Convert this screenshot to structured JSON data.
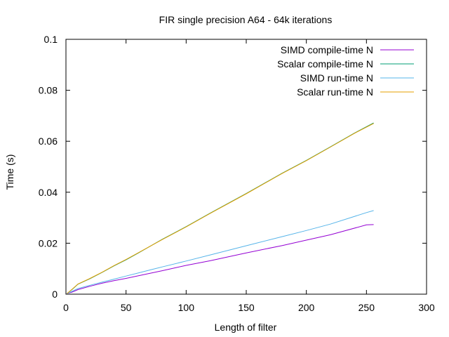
{
  "chart_data": {
    "type": "line",
    "title": "FIR single precision A64 - 64k iterations",
    "xlabel": "Length of filter",
    "ylabel": "Time (s)",
    "xlim": [
      0,
      300
    ],
    "ylim": [
      0,
      0.1
    ],
    "xticks": [
      0,
      50,
      100,
      150,
      200,
      250,
      300
    ],
    "yticks": [
      0,
      0.02,
      0.04,
      0.06,
      0.08,
      0.1
    ],
    "xtick_labels": [
      "0",
      "50",
      "100",
      "150",
      "200",
      "250",
      "300"
    ],
    "ytick_labels": [
      "0",
      "0.02",
      "0.04",
      "0.06",
      "0.08",
      "0.1"
    ],
    "grid": false,
    "legend_position": "top-right",
    "series": [
      {
        "name": "SIMD compile-time N",
        "color": "#9400d3",
        "x": [
          1,
          5,
          10,
          20,
          30,
          40,
          50,
          60,
          70,
          80,
          100,
          120,
          150,
          180,
          200,
          220,
          250,
          256
        ],
        "y": [
          0.0003,
          0.0008,
          0.0018,
          0.0031,
          0.0043,
          0.0053,
          0.0062,
          0.0072,
          0.0082,
          0.0092,
          0.0113,
          0.0131,
          0.0162,
          0.0191,
          0.0212,
          0.0233,
          0.0272,
          0.0273
        ]
      },
      {
        "name": "Scalar compile-time N",
        "color": "#009e73",
        "x": [
          1,
          5,
          10,
          20,
          30,
          40,
          50,
          60,
          80,
          100,
          120,
          150,
          180,
          200,
          220,
          240,
          256
        ],
        "y": [
          0.0003,
          0.0018,
          0.0039,
          0.0061,
          0.0085,
          0.0111,
          0.0135,
          0.0161,
          0.0215,
          0.0265,
          0.0318,
          0.0395,
          0.0475,
          0.0525,
          0.0578,
          0.0632,
          0.0672
        ]
      },
      {
        "name": "SIMD run-time N",
        "color": "#56b4e9",
        "x": [
          1,
          5,
          10,
          20,
          30,
          40,
          50,
          60,
          70,
          80,
          100,
          120,
          150,
          180,
          200,
          220,
          250,
          256
        ],
        "y": [
          0.0003,
          0.0011,
          0.0022,
          0.0035,
          0.0047,
          0.0059,
          0.0071,
          0.0083,
          0.0095,
          0.0107,
          0.013,
          0.0154,
          0.019,
          0.0226,
          0.025,
          0.0275,
          0.032,
          0.0328
        ]
      },
      {
        "name": "Scalar run-time N",
        "color": "#e69f00",
        "x": [
          1,
          5,
          10,
          20,
          30,
          40,
          50,
          60,
          80,
          100,
          120,
          150,
          180,
          200,
          220,
          240,
          256
        ],
        "y": [
          0.0003,
          0.0019,
          0.004,
          0.0062,
          0.0086,
          0.0112,
          0.0136,
          0.0162,
          0.0214,
          0.0264,
          0.0317,
          0.0394,
          0.0474,
          0.0524,
          0.0577,
          0.0631,
          0.067
        ]
      }
    ]
  }
}
